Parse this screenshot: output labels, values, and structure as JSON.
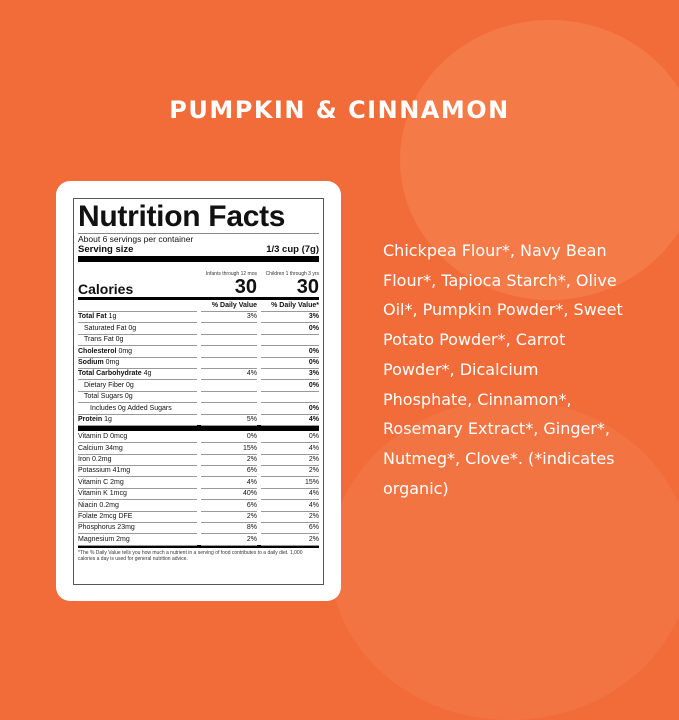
{
  "title": "PUMPKIN & CINNAMON",
  "nutrition": {
    "heading": "Nutrition Facts",
    "servings": "About 6 servings per container",
    "serving_size_label": "Serving size",
    "serving_size": "1/3 cup (7g)",
    "col1_header": "Infants through 12 mos",
    "col2_header": "Children 1 through 3 yrs",
    "calories_label": "Calories",
    "calories1": "30",
    "calories2": "30",
    "dv1": "% Daily Value",
    "dv2": "% Daily Value*",
    "rows": [
      {
        "b": "Total Fat",
        "t": " 1g",
        "v1": "3%",
        "v2": "3%",
        "i": 0
      },
      {
        "b": "",
        "t": "Saturated Fat 0g",
        "v1": "",
        "v2": "0%",
        "i": 1
      },
      {
        "b": "",
        "t": "Trans Fat 0g",
        "v1": "",
        "v2": "",
        "i": 1
      },
      {
        "b": "Cholesterol",
        "t": " 0mg",
        "v1": "",
        "v2": "0%",
        "i": 0
      },
      {
        "b": "Sodium",
        "t": " 0mg",
        "v1": "",
        "v2": "0%",
        "i": 0
      },
      {
        "b": "Total Carbohydrate",
        "t": " 4g",
        "v1": "4%",
        "v2": "3%",
        "i": 0
      },
      {
        "b": "",
        "t": "Dietary Fiber 0g",
        "v1": "",
        "v2": "0%",
        "i": 1
      },
      {
        "b": "",
        "t": "Total Sugars 0g",
        "v1": "",
        "v2": "",
        "i": 1
      },
      {
        "b": "",
        "t": "Includes 0g Added Sugars",
        "v1": "",
        "v2": "0%",
        "i": 2
      },
      {
        "b": "Protein",
        "t": " 1g",
        "v1": "5%",
        "v2": "4%",
        "i": 0
      }
    ],
    "micros": [
      {
        "t": "Vitamin D 0mcg",
        "v1": "0%",
        "v2": "0%"
      },
      {
        "t": "Calcium 34mg",
        "v1": "15%",
        "v2": "4%"
      },
      {
        "t": "Iron 0.2mg",
        "v1": "2%",
        "v2": "2%"
      },
      {
        "t": "Potassium 41mg",
        "v1": "6%",
        "v2": "2%"
      },
      {
        "t": "Vitamin C 2mg",
        "v1": "4%",
        "v2": "15%"
      },
      {
        "t": "Vitamin K 1mcg",
        "v1": "40%",
        "v2": "4%"
      },
      {
        "t": "Niacin 0.2mg",
        "v1": "6%",
        "v2": "4%"
      },
      {
        "t": "Folate 2mcg DFE",
        "v1": "2%",
        "v2": "2%"
      },
      {
        "t": "Phosphorus 23mg",
        "v1": "8%",
        "v2": "6%"
      },
      {
        "t": "Magnesium 2mg",
        "v1": "2%",
        "v2": "2%"
      }
    ],
    "footnote": "*The % Daily Value tells you how much a nutrient in a serving of food contributes to a daily diet. 1,000 calories a day is used for general nutrition advice."
  },
  "ingredients": "Chickpea Flour*, Navy Bean Flour*, Tapioca Starch*, Olive Oil*, Pumpkin Powder*, Sweet Potato Powder*, Carrot Powder*, Dicalcium Phosphate, Cinnamon*, Rosemary Extract*, Ginger*, Nutmeg*, Clove*. (*indicates organic)"
}
